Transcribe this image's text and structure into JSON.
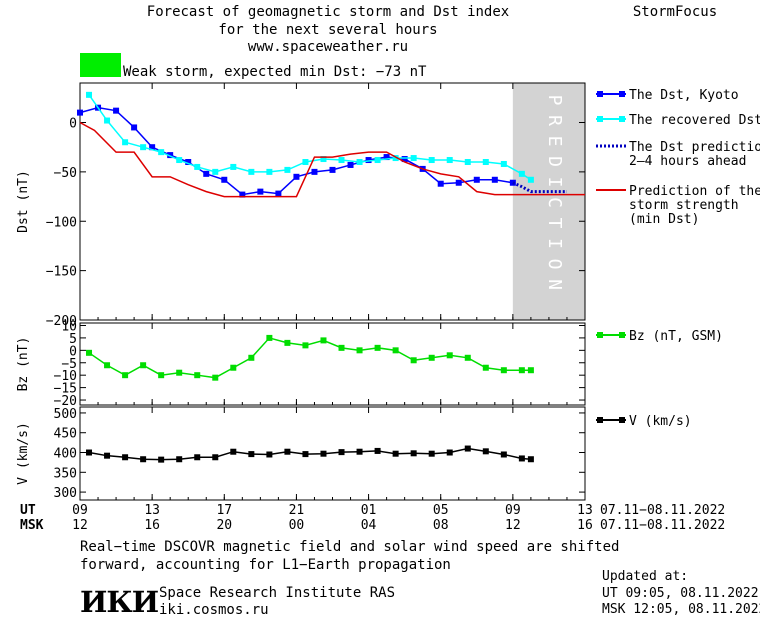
{
  "header": {
    "title_line1": "Forecast of geomagnetic storm and Dst index",
    "title_line2": "for the next several hours",
    "url": "www.spaceweather.ru",
    "brand": "StormFocus",
    "storm_text": "Weak storm, expected min Dst: −73 nT",
    "storm_color": "#00ee00"
  },
  "colors": {
    "kyoto": "#0000ff",
    "recovered": "#00ffff",
    "prediction": "#0000c0",
    "strength": "#dd0000",
    "bz": "#00dd00",
    "v": "#000000",
    "prediction_band": "#d3d3d3"
  },
  "chart_data": [
    {
      "type": "line",
      "ylabel": "Dst (nT)",
      "ylim": [
        -200,
        40
      ],
      "yticks": [
        0,
        -50,
        -100,
        -150,
        -200
      ],
      "yticklabels": [
        "0",
        "−50",
        "−100",
        "−150",
        "−200"
      ],
      "xlim": [
        0,
        28
      ],
      "prediction_band": [
        24,
        28
      ],
      "prediction_label": "PREDICTION",
      "legend_position": "right",
      "series": [
        {
          "name": "The Dst, Kyoto",
          "x": [
            0,
            1,
            2,
            3,
            4,
            5,
            6,
            7,
            8,
            9,
            10,
            11,
            12,
            13,
            14,
            15,
            16,
            17,
            18,
            19,
            20,
            21,
            22,
            23,
            24
          ],
          "y": [
            10,
            15,
            12,
            -5,
            -25,
            -33,
            -40,
            -52,
            -58,
            -73,
            -70,
            -72,
            -55,
            -50,
            -48,
            -43,
            -38,
            -35,
            -37,
            -47,
            -62,
            -61,
            -58,
            -58,
            -61
          ]
        },
        {
          "name": "The recovered Dst",
          "x": [
            0.5,
            1.5,
            2.5,
            3.5,
            4.5,
            5.5,
            6.5,
            7.5,
            8.5,
            9.5,
            10.5,
            11.5,
            12.5,
            13.5,
            14.5,
            15.5,
            16.5,
            17.5,
            18.5,
            19.5,
            20.5,
            21.5,
            22.5,
            23.5,
            24.5,
            25
          ],
          "y": [
            28,
            2,
            -20,
            -25,
            -30,
            -38,
            -45,
            -50,
            -45,
            -50,
            -50,
            -48,
            -40,
            -37,
            -38,
            -40,
            -38,
            -36,
            -36,
            -38,
            -38,
            -40,
            -40,
            -42,
            -52,
            -58
          ]
        },
        {
          "name": "The Dst prediction\n2–4 hours ahead",
          "x": [
            24,
            24.5,
            25,
            26,
            27
          ],
          "y": [
            -61,
            -65,
            -70,
            -70,
            -70
          ]
        },
        {
          "name": "Prediction of the\nstorm strength\n(min Dst)",
          "x": [
            0,
            0.8,
            2,
            3,
            4,
            5,
            6,
            7,
            8,
            9,
            10,
            11,
            12,
            13,
            14,
            15,
            16,
            17,
            18,
            19,
            20,
            21,
            22,
            23,
            24,
            25,
            26,
            27,
            28
          ],
          "y": [
            0,
            -8,
            -30,
            -30,
            -55,
            -55,
            -63,
            -70,
            -75,
            -75,
            -75,
            -75,
            -75,
            -35,
            -35,
            -32,
            -30,
            -30,
            -40,
            -47,
            -52,
            -55,
            -70,
            -73,
            -73,
            -73,
            -73,
            -73,
            -73
          ]
        }
      ]
    },
    {
      "type": "line",
      "ylabel": "Bz (nT)",
      "ylim": [
        -22,
        11
      ],
      "yticks": [
        10,
        5,
        0,
        -5,
        -10,
        -15,
        -20
      ],
      "yticklabels": [
        "10",
        "5",
        "0",
        "−5",
        "−10",
        "−15",
        "−20"
      ],
      "xlim": [
        0,
        28
      ],
      "legend_position": "right",
      "series": [
        {
          "name": "Bz (nT, GSM)",
          "x": [
            0.5,
            1.5,
            2.5,
            3.5,
            4.5,
            5.5,
            6.5,
            7.5,
            8.5,
            9.5,
            10.5,
            11.5,
            12.5,
            13.5,
            14.5,
            15.5,
            16.5,
            17.5,
            18.5,
            19.5,
            20.5,
            21.5,
            22.5,
            23.5,
            24.5,
            25
          ],
          "y": [
            -1,
            -6,
            -10,
            -6,
            -10,
            -9,
            -10,
            -11,
            -7,
            -3,
            5,
            3,
            2,
            4,
            1,
            0,
            1,
            0,
            -4,
            -3,
            -2,
            -3,
            -7,
            -8,
            -8,
            -8
          ]
        }
      ]
    },
    {
      "type": "line",
      "ylabel": "V (km/s)",
      "ylim": [
        280,
        515
      ],
      "yticks": [
        500,
        450,
        400,
        350,
        300
      ],
      "yticklabels": [
        "500",
        "450",
        "400",
        "350",
        "300"
      ],
      "xlim": [
        0,
        28
      ],
      "legend_position": "right",
      "series": [
        {
          "name": "V (km/s)",
          "x": [
            0.5,
            1.5,
            2.5,
            3.5,
            4.5,
            5.5,
            6.5,
            7.5,
            8.5,
            9.5,
            10.5,
            11.5,
            12.5,
            13.5,
            14.5,
            15.5,
            16.5,
            17.5,
            18.5,
            19.5,
            20.5,
            21.5,
            22.5,
            23.5,
            24.5,
            25
          ],
          "y": [
            400,
            392,
            388,
            383,
            382,
            383,
            388,
            388,
            402,
            396,
            395,
            402,
            396,
            397,
            401,
            402,
            404,
            397,
            398,
            397,
            400,
            410,
            403,
            395,
            385,
            383
          ]
        }
      ]
    }
  ],
  "time_axis": {
    "ut_label": "UT",
    "msk_label": "MSK",
    "ticks_x": [
      0,
      4,
      8,
      12,
      16,
      20,
      24,
      28
    ],
    "ut_ticks": [
      "09",
      "13",
      "17",
      "21",
      "01",
      "05",
      "09",
      "13"
    ],
    "msk_ticks": [
      "12",
      "16",
      "20",
      "00",
      "04",
      "08",
      "12",
      "16"
    ],
    "ut_range": "07.11−08.11.2022",
    "msk_range": "07.11−08.11.2022"
  },
  "footer": {
    "note_line1": "Real−time DSCOVR magnetic field and solar wind speed are shifted",
    "note_line2": "forward, accounting for L1−Earth propagation",
    "logo": "ИКИ",
    "institute": "Space Research Institute RAS",
    "site": "iki.cosmos.ru",
    "updated_label": "Updated at:",
    "updated_ut": "UT   09:05, 08.11.2022",
    "updated_msk": "MSK 12:05, 08.11.2022"
  }
}
